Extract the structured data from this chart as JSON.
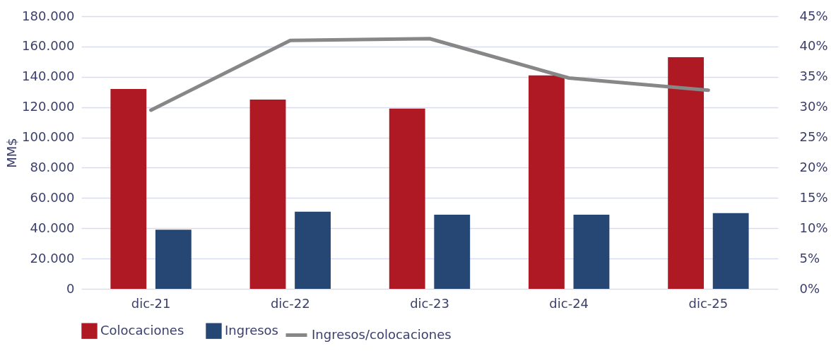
{
  "chart_data": {
    "type": "bar",
    "categories": [
      "dic-21",
      "dic-22",
      "dic-23",
      "dic-24",
      "dic-25"
    ],
    "ylabel": "MM$",
    "series": [
      {
        "name": "Colocaciones",
        "color": "#ae1923",
        "values": [
          132000,
          125000,
          119000,
          141000,
          153000
        ]
      },
      {
        "name": "Ingresos",
        "color": "#264674",
        "values": [
          39000,
          51000,
          49000,
          49000,
          50000
        ]
      },
      {
        "name": "Ingresos/colocaciones",
        "type": "line",
        "axis": "y2",
        "color": "#878787",
        "values": [
          29.5,
          41.0,
          41.3,
          34.8,
          32.8
        ]
      }
    ],
    "ylim": [
      0,
      180000
    ],
    "yticks": [
      {
        "value": 0,
        "label": "0"
      },
      {
        "value": 20000,
        "label": "20.000"
      },
      {
        "value": 40000,
        "label": "40.000"
      },
      {
        "value": 60000,
        "label": "60.000"
      },
      {
        "value": 80000,
        "label": "80.000"
      },
      {
        "value": 100000,
        "label": "100.000"
      },
      {
        "value": 120000,
        "label": "120.000"
      },
      {
        "value": 140000,
        "label": "140.000"
      },
      {
        "value": 160000,
        "label": "160.000"
      },
      {
        "value": 180000,
        "label": "180.000"
      }
    ],
    "y2lim": [
      0,
      45
    ],
    "y2ticks": [
      {
        "value": 0,
        "label": "0%"
      },
      {
        "value": 5,
        "label": "5%"
      },
      {
        "value": 10,
        "label": "10%"
      },
      {
        "value": 15,
        "label": "15%"
      },
      {
        "value": 20,
        "label": "20%"
      },
      {
        "value": 25,
        "label": "25%"
      },
      {
        "value": 30,
        "label": "30%"
      },
      {
        "value": 35,
        "label": "35%"
      },
      {
        "value": 40,
        "label": "40%"
      },
      {
        "value": 45,
        "label": "45%"
      }
    ],
    "grid": "y",
    "legend": "bottom"
  }
}
